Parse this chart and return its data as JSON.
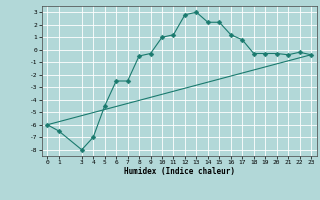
{
  "xlabel": "Humidex (Indice chaleur)",
  "bg_color": "#b2d8d8",
  "grid_color": "#ffffff",
  "line_color": "#1a7a6e",
  "xlim": [
    -0.5,
    23.5
  ],
  "ylim": [
    -8.5,
    3.5
  ],
  "yticks": [
    3,
    2,
    1,
    0,
    -1,
    -2,
    -3,
    -4,
    -5,
    -6,
    -7,
    -8
  ],
  "xticks": [
    0,
    1,
    3,
    4,
    5,
    6,
    7,
    8,
    9,
    10,
    11,
    12,
    13,
    14,
    15,
    16,
    17,
    18,
    19,
    20,
    21,
    22,
    23
  ],
  "curve1_x": [
    0,
    1,
    3,
    4,
    5,
    6,
    7,
    8,
    9,
    10,
    11,
    12,
    13,
    14,
    15,
    16,
    17,
    18,
    19,
    20,
    21,
    22,
    23
  ],
  "curve1_y": [
    -6.0,
    -6.5,
    -8.0,
    -7.0,
    -4.5,
    -2.5,
    -2.5,
    -0.5,
    -0.3,
    1.0,
    1.2,
    2.8,
    3.0,
    2.2,
    2.2,
    1.2,
    0.8,
    -0.3,
    -0.3,
    -0.3,
    -0.4,
    -0.2,
    -0.4
  ],
  "curve2_x": [
    0,
    23
  ],
  "curve2_y": [
    -6.0,
    -0.4
  ],
  "markersize": 2.5,
  "linewidth": 0.8
}
